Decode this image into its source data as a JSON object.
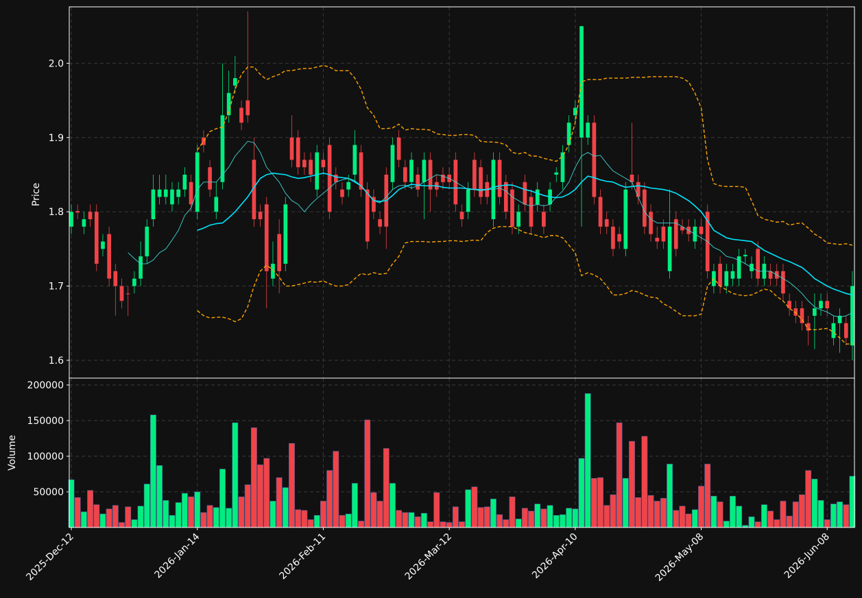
{
  "chart_data": {
    "type": "candlestick",
    "ylabel": "Price",
    "ylim": [
      1.576,
      2.076
    ],
    "yticks": [
      1.6,
      1.7,
      1.8,
      1.9,
      {
        "value": 2.0,
        "label": "2.0"
      }
    ],
    "grid": true,
    "up_color": "#00ee80",
    "down_color": "#f04448",
    "categories": [
      "2025-Dec-12",
      null,
      null,
      null,
      null,
      null,
      null,
      null,
      null,
      null,
      null,
      null,
      null,
      null,
      null,
      null,
      null,
      null,
      null,
      null,
      "2026-Jan-14",
      null,
      null,
      null,
      null,
      null,
      null,
      null,
      null,
      null,
      null,
      null,
      null,
      null,
      null,
      null,
      null,
      null,
      null,
      null,
      "2026-Feb-11",
      null,
      null,
      null,
      null,
      null,
      null,
      null,
      null,
      null,
      null,
      null,
      null,
      null,
      null,
      null,
      null,
      null,
      null,
      null,
      "2026-Mar-12",
      null,
      null,
      null,
      null,
      null,
      null,
      null,
      null,
      null,
      null,
      null,
      null,
      null,
      null,
      null,
      null,
      null,
      null,
      null,
      "2026-Apr-10",
      null,
      null,
      null,
      null,
      null,
      null,
      null,
      null,
      null,
      null,
      null,
      null,
      null,
      null,
      null,
      null,
      null,
      null,
      null,
      "2026-May-08",
      null,
      null,
      null,
      null,
      null,
      null,
      null,
      null,
      null,
      null,
      null,
      null,
      null,
      null,
      null,
      null,
      null,
      null,
      null,
      "2026-Jun-08",
      null,
      null,
      null,
      null
    ],
    "open": [
      1.78,
      1.801,
      1.78,
      1.8,
      1.8,
      1.75,
      1.77,
      1.72,
      1.7,
      1.69,
      1.7,
      1.71,
      1.74,
      1.79,
      1.82,
      1.82,
      1.81,
      1.82,
      1.83,
      1.84,
      1.8,
      1.9,
      1.86,
      1.8,
      1.84,
      1.93,
      1.97,
      1.94,
      1.95,
      1.87,
      1.8,
      1.81,
      1.71,
      1.77,
      1.73,
      1.9,
      1.9,
      1.87,
      1.87,
      1.83,
      1.87,
      1.89,
      1.85,
      1.83,
      1.83,
      1.85,
      1.88,
      1.83,
      1.82,
      1.79,
      1.85,
      1.84,
      1.9,
      1.86,
      1.84,
      1.85,
      1.84,
      1.87,
      1.84,
      1.85,
      1.85,
      1.87,
      1.8,
      1.8,
      1.87,
      1.86,
      1.84,
      1.79,
      1.87,
      1.84,
      1.83,
      1.78,
      1.84,
      1.82,
      1.81,
      1.8,
      1.81,
      1.85,
      1.84,
      1.89,
      1.93,
      1.9,
      1.9,
      1.92,
      1.82,
      1.79,
      1.78,
      1.77,
      1.75,
      1.85,
      1.84,
      1.83,
      1.8,
      1.765,
      1.78,
      1.72,
      1.79,
      1.78,
      1.78,
      1.76,
      1.78,
      1.8,
      1.7,
      1.73,
      1.7,
      1.71,
      1.71,
      1.74,
      1.72,
      1.75,
      1.71,
      1.72,
      1.72,
      1.72,
      1.68,
      1.67,
      1.67,
      1.65,
      1.66,
      1.67,
      1.68,
      1.63,
      1.65,
      1.65,
      1.62
    ],
    "high": [
      1.81,
      1.81,
      1.8,
      1.81,
      1.81,
      1.77,
      1.78,
      1.73,
      1.71,
      1.7,
      1.72,
      1.76,
      1.79,
      1.85,
      1.85,
      1.85,
      1.84,
      1.84,
      1.86,
      1.85,
      1.89,
      1.91,
      1.87,
      1.84,
      2.0,
      1.99,
      2.01,
      1.95,
      2.07,
      1.9,
      1.81,
      1.82,
      1.76,
      1.79,
      1.82,
      1.93,
      1.91,
      1.88,
      1.88,
      1.89,
      1.88,
      1.9,
      1.86,
      1.84,
      1.85,
      1.91,
      1.89,
      1.84,
      1.83,
      1.8,
      1.86,
      1.9,
      1.91,
      1.87,
      1.88,
      1.86,
      1.88,
      1.88,
      1.85,
      1.86,
      1.86,
      1.88,
      1.81,
      1.84,
      1.88,
      1.87,
      1.85,
      1.88,
      1.88,
      1.85,
      1.84,
      1.81,
      1.85,
      1.83,
      1.84,
      1.81,
      1.84,
      1.86,
      1.89,
      1.93,
      1.95,
      2.05,
      1.93,
      1.93,
      1.83,
      1.8,
      1.79,
      1.78,
      1.84,
      1.92,
      1.85,
      1.84,
      1.81,
      1.78,
      1.79,
      1.83,
      1.8,
      1.79,
      1.79,
      1.79,
      1.79,
      1.81,
      1.73,
      1.74,
      1.73,
      1.73,
      1.75,
      1.75,
      1.74,
      1.76,
      1.74,
      1.73,
      1.73,
      1.73,
      1.69,
      1.68,
      1.68,
      1.66,
      1.69,
      1.69,
      1.69,
      1.66,
      1.67,
      1.66,
      1.72
    ],
    "low": [
      1.77,
      1.79,
      1.77,
      1.78,
      1.72,
      1.74,
      1.7,
      1.66,
      1.67,
      1.66,
      1.69,
      1.7,
      1.73,
      1.78,
      1.81,
      1.81,
      1.8,
      1.81,
      1.82,
      1.8,
      1.79,
      1.88,
      1.82,
      1.79,
      1.83,
      1.92,
      1.96,
      1.91,
      1.92,
      1.78,
      1.78,
      1.67,
      1.7,
      1.69,
      1.72,
      1.86,
      1.85,
      1.85,
      1.84,
      1.82,
      1.85,
      1.79,
      1.83,
      1.81,
      1.82,
      1.84,
      1.82,
      1.75,
      1.79,
      1.77,
      1.75,
      1.83,
      1.86,
      1.83,
      1.83,
      1.82,
      1.79,
      1.8,
      1.82,
      1.83,
      1.83,
      1.8,
      1.78,
      1.79,
      1.82,
      1.81,
      1.81,
      1.78,
      1.81,
      1.79,
      1.77,
      1.77,
      1.8,
      1.77,
      1.8,
      1.77,
      1.8,
      1.84,
      1.83,
      1.88,
      1.92,
      1.78,
      1.89,
      1.81,
      1.77,
      1.77,
      1.74,
      1.75,
      1.74,
      1.83,
      1.81,
      1.77,
      1.76,
      1.75,
      1.75,
      1.71,
      1.74,
      1.77,
      1.76,
      1.75,
      1.76,
      1.71,
      1.69,
      1.69,
      1.69,
      1.7,
      1.7,
      1.73,
      1.71,
      1.7,
      1.7,
      1.7,
      1.7,
      1.68,
      1.66,
      1.65,
      1.64,
      1.62,
      1.615,
      1.66,
      1.66,
      1.62,
      1.61,
      1.62,
      1.6
    ],
    "close": [
      1.8,
      1.799,
      1.79,
      1.79,
      1.73,
      1.76,
      1.71,
      1.7,
      1.68,
      1.689,
      1.71,
      1.74,
      1.78,
      1.83,
      1.83,
      1.83,
      1.83,
      1.83,
      1.85,
      1.81,
      1.88,
      1.89,
      1.83,
      1.82,
      1.93,
      1.96,
      1.98,
      1.92,
      1.93,
      1.79,
      1.79,
      1.72,
      1.73,
      1.72,
      1.81,
      1.87,
      1.86,
      1.86,
      1.85,
      1.88,
      1.86,
      1.8,
      1.84,
      1.82,
      1.84,
      1.89,
      1.83,
      1.76,
      1.8,
      1.78,
      1.78,
      1.89,
      1.87,
      1.84,
      1.87,
      1.83,
      1.87,
      1.83,
      1.83,
      1.84,
      1.84,
      1.81,
      1.79,
      1.83,
      1.83,
      1.82,
      1.82,
      1.87,
      1.82,
      1.8,
      1.78,
      1.8,
      1.81,
      1.78,
      1.83,
      1.78,
      1.83,
      1.853,
      1.88,
      1.92,
      1.94,
      2.05,
      1.92,
      1.82,
      1.78,
      1.78,
      1.75,
      1.76,
      1.83,
      1.84,
      1.82,
      1.78,
      1.77,
      1.76,
      1.76,
      1.78,
      1.75,
      1.775,
      1.77,
      1.78,
      1.77,
      1.72,
      1.72,
      1.7,
      1.72,
      1.72,
      1.74,
      1.742,
      1.73,
      1.71,
      1.73,
      1.71,
      1.71,
      1.69,
      1.67,
      1.66,
      1.65,
      1.64,
      1.67,
      1.68,
      1.67,
      1.65,
      1.66,
      1.63,
      1.7
    ],
    "lines": [
      {
        "color": "#00e5ff",
        "linewidth": 1.6,
        "dashed": false,
        "values": [
          null,
          null,
          null,
          null,
          null,
          null,
          null,
          null,
          null,
          null,
          null,
          null,
          null,
          null,
          null,
          null,
          null,
          null,
          null,
          null,
          1.775,
          1.778,
          1.782,
          1.784,
          1.785,
          1.792,
          1.8,
          1.81,
          1.82,
          1.833,
          1.845,
          1.85,
          1.852,
          1.851,
          1.85,
          1.847,
          1.845,
          1.846,
          1.848,
          1.85,
          1.852,
          1.85,
          1.847,
          1.846,
          1.845,
          1.84,
          1.835,
          1.825,
          1.815,
          1.814,
          1.815,
          1.822,
          1.83,
          1.834,
          1.837,
          1.836,
          1.835,
          1.835,
          1.835,
          1.833,
          1.832,
          1.832,
          1.832,
          1.831,
          1.83,
          1.83,
          1.83,
          1.833,
          1.835,
          1.836,
          1.836,
          1.833,
          1.83,
          1.828,
          1.825,
          1.822,
          1.82,
          1.819,
          1.82,
          1.824,
          1.83,
          1.84,
          1.848,
          1.846,
          1.843,
          1.841,
          1.84,
          1.836,
          1.833,
          1.834,
          1.835,
          1.834,
          1.832,
          1.831,
          1.83,
          1.828,
          1.825,
          1.82,
          1.815,
          1.808,
          1.8,
          1.788,
          1.775,
          1.77,
          1.765,
          1.763,
          1.762,
          1.761,
          1.76,
          1.754,
          1.748,
          1.744,
          1.74,
          1.736,
          1.733,
          1.729,
          1.725,
          1.718,
          1.71,
          1.705,
          1.7,
          1.696,
          1.693,
          1.69,
          1.688
        ]
      },
      {
        "color": "#3fd6d6",
        "linewidth": 0.9,
        "dashed": false,
        "values": [
          null,
          null,
          null,
          null,
          null,
          null,
          null,
          null,
          null,
          1.745,
          1.737,
          1.73,
          1.73,
          1.735,
          1.745,
          1.75,
          1.762,
          1.775,
          1.795,
          1.805,
          1.83,
          1.84,
          1.84,
          1.84,
          1.85,
          1.86,
          1.875,
          1.885,
          1.895,
          1.893,
          1.88,
          1.86,
          1.85,
          1.84,
          1.825,
          1.815,
          1.81,
          1.8,
          1.81,
          1.818,
          1.825,
          1.832,
          1.84,
          1.843,
          1.845,
          1.842,
          1.835,
          1.825,
          1.815,
          1.812,
          1.82,
          1.83,
          1.835,
          1.836,
          1.832,
          1.835,
          1.84,
          1.845,
          1.85,
          1.848,
          1.845,
          1.84,
          1.835,
          1.83,
          1.83,
          1.828,
          1.83,
          1.83,
          1.832,
          1.828,
          1.82,
          1.815,
          1.81,
          1.808,
          1.81,
          1.808,
          1.81,
          1.82,
          1.828,
          1.84,
          1.86,
          1.875,
          1.88,
          1.875,
          1.876,
          1.865,
          1.855,
          1.85,
          1.845,
          1.84,
          1.82,
          1.8,
          1.79,
          1.785,
          1.785,
          1.785,
          1.785,
          1.78,
          1.775,
          1.77,
          1.765,
          1.76,
          1.752,
          1.748,
          1.74,
          1.738,
          1.735,
          1.73,
          1.725,
          1.72,
          1.72,
          1.72,
          1.715,
          1.71,
          1.705,
          1.698,
          1.69,
          1.68,
          1.672,
          1.668,
          1.665,
          1.66,
          1.658,
          1.66,
          1.664
        ]
      },
      {
        "color": "#ffa500",
        "linewidth": 1.4,
        "dashed": true,
        "values": [
          null,
          null,
          null,
          null,
          null,
          null,
          null,
          null,
          null,
          null,
          null,
          null,
          null,
          null,
          null,
          null,
          null,
          null,
          null,
          null,
          1.883,
          1.895,
          1.908,
          1.912,
          1.914,
          1.935,
          1.965,
          1.985,
          1.995,
          1.995,
          1.985,
          1.978,
          1.982,
          1.985,
          1.99,
          1.99,
          1.992,
          1.993,
          1.993,
          1.995,
          1.997,
          1.995,
          1.99,
          1.99,
          1.99,
          1.98,
          1.965,
          1.94,
          1.93,
          1.912,
          1.912,
          1.913,
          1.918,
          1.91,
          1.912,
          1.911,
          1.911,
          1.91,
          1.905,
          1.904,
          1.903,
          1.903,
          1.904,
          1.904,
          1.903,
          1.895,
          1.894,
          1.894,
          1.893,
          1.89,
          1.88,
          1.878,
          1.88,
          1.875,
          1.875,
          1.872,
          1.87,
          1.868,
          1.875,
          1.89,
          1.92,
          1.975,
          1.978,
          1.978,
          1.978,
          1.98,
          1.98,
          1.98,
          1.98,
          1.981,
          1.981,
          1.981,
          1.982,
          1.982,
          1.982,
          1.982,
          1.982,
          1.98,
          1.975,
          1.96,
          1.94,
          1.87,
          1.838,
          1.835,
          1.834,
          1.834,
          1.834,
          1.833,
          1.815,
          1.795,
          1.79,
          1.788,
          1.786,
          1.787,
          1.782,
          1.784,
          1.785,
          1.778,
          1.77,
          1.765,
          1.758,
          1.757,
          1.756,
          1.757,
          1.755
        ]
      },
      {
        "color": "#ffa500",
        "linewidth": 1.4,
        "dashed": true,
        "values": [
          null,
          null,
          null,
          null,
          null,
          null,
          null,
          null,
          null,
          null,
          null,
          null,
          null,
          null,
          null,
          null,
          null,
          null,
          null,
          null,
          1.667,
          1.66,
          1.657,
          1.658,
          1.658,
          1.656,
          1.652,
          1.656,
          1.672,
          1.7,
          1.72,
          1.728,
          1.722,
          1.712,
          1.7,
          1.7,
          1.702,
          1.704,
          1.706,
          1.705,
          1.707,
          1.703,
          1.7,
          1.7,
          1.702,
          1.71,
          1.717,
          1.715,
          1.718,
          1.716,
          1.717,
          1.73,
          1.74,
          1.758,
          1.76,
          1.76,
          1.76,
          1.759,
          1.76,
          1.76,
          1.761,
          1.761,
          1.76,
          1.761,
          1.762,
          1.761,
          1.772,
          1.778,
          1.78,
          1.78,
          1.78,
          1.776,
          1.772,
          1.77,
          1.768,
          1.765,
          1.768,
          1.768,
          1.765,
          1.755,
          1.745,
          1.714,
          1.718,
          1.715,
          1.71,
          1.7,
          1.688,
          1.688,
          1.69,
          1.694,
          1.692,
          1.688,
          1.685,
          1.684,
          1.676,
          1.672,
          1.666,
          1.66,
          1.66,
          1.66,
          1.662,
          1.7,
          1.71,
          1.7,
          1.695,
          1.69,
          1.688,
          1.687,
          1.688,
          1.692,
          1.696,
          1.694,
          1.686,
          1.68,
          1.67,
          1.664,
          1.655,
          1.642,
          1.641,
          1.642,
          1.643,
          1.638,
          1.63,
          1.622,
          1.622
        ]
      }
    ],
    "volume": [
      67000,
      42000,
      22000,
      52000,
      32000,
      19000,
      26000,
      31000,
      7000,
      29000,
      11000,
      30000,
      61000,
      158000,
      87000,
      38000,
      17000,
      35000,
      48000,
      43000,
      50000,
      21000,
      31000,
      28000,
      82000,
      27000,
      147000,
      43000,
      60000,
      140000,
      88000,
      97000,
      37000,
      70000,
      56000,
      118000,
      25000,
      24000,
      11000,
      17000,
      37000,
      80000,
      107000,
      17000,
      19000,
      62000,
      9000,
      151000,
      49000,
      37000,
      111000,
      62000,
      24000,
      21000,
      21000,
      15000,
      20000,
      8000,
      49000,
      8000,
      7000,
      29000,
      8000,
      53000,
      57000,
      28000,
      29000,
      40000,
      18000,
      11000,
      43000,
      12000,
      27000,
      23000,
      33000,
      26000,
      31000,
      17000,
      18000,
      27000,
      26000,
      97000,
      188000,
      69000,
      70000,
      31000,
      46000,
      147000,
      69000,
      121000,
      42000,
      128000,
      45000,
      37000,
      41000,
      89000,
      24000,
      30000,
      19000,
      25000,
      58000,
      89000,
      44000,
      36000,
      9000,
      44000,
      30000,
      3000,
      15000,
      8000,
      32000,
      23000,
      11000,
      37000,
      16000,
      36000,
      46000,
      80000,
      68000,
      38000,
      11000,
      33000,
      36000,
      32000,
      72000
    ],
    "volume_panel": {
      "ylabel": "Volume",
      "ylim": [
        0,
        209600
      ],
      "yticks": [
        50000,
        100000,
        150000,
        200000
      ]
    }
  }
}
